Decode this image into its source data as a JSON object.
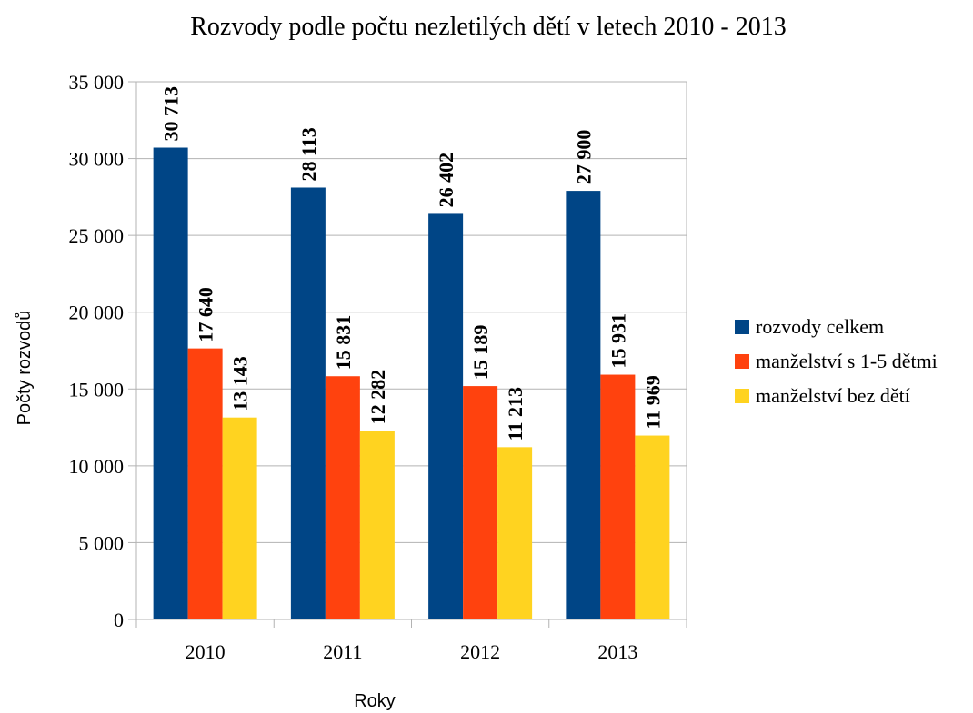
{
  "chart_data": {
    "type": "bar",
    "title": "Rozvody podle počtu nezletilých dětí v letech 2010 - 2013",
    "xlabel": "Roky",
    "ylabel": "Počty rozvodů",
    "categories": [
      "2010",
      "2011",
      "2012",
      "2013"
    ],
    "ylim": [
      0,
      35000
    ],
    "y_ticks": [
      {
        "value": 0,
        "label": "0"
      },
      {
        "value": 5000,
        "label": "5 000"
      },
      {
        "value": 10000,
        "label": "10 000"
      },
      {
        "value": 15000,
        "label": "15 000"
      },
      {
        "value": 20000,
        "label": "20 000"
      },
      {
        "value": 25000,
        "label": "25 000"
      },
      {
        "value": 30000,
        "label": "30 000"
      },
      {
        "value": 35000,
        "label": "35 000"
      }
    ],
    "grid": true,
    "legend_position": "right",
    "series": [
      {
        "name": "rozvody celkem",
        "color": "#004586",
        "values": [
          30713,
          28113,
          26402,
          27900
        ],
        "labels": [
          "30 713",
          "28 113",
          "26 402",
          "27 900"
        ]
      },
      {
        "name": "manželství s 1-5 dětmi",
        "color": "#ff420e",
        "values": [
          17640,
          15831,
          15189,
          15931
        ],
        "labels": [
          "17 640",
          "15 831",
          "15 189",
          "15 931"
        ]
      },
      {
        "name": "manželství bez dětí",
        "color": "#ffd320",
        "values": [
          13143,
          12282,
          11213,
          11969
        ],
        "labels": [
          "13 143",
          "12 282",
          "11 213",
          "11 969"
        ]
      }
    ]
  }
}
